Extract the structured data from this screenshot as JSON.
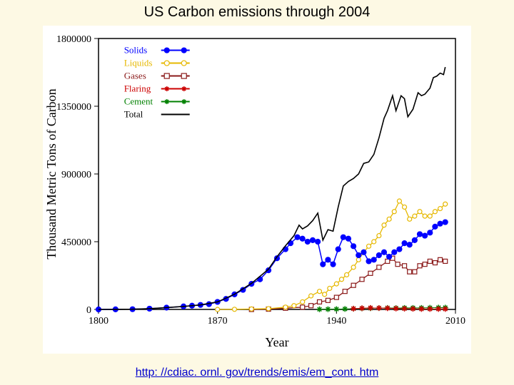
{
  "title": "US Carbon emissions through 2004",
  "footer_link": "http: //cdiac. ornl. gov/trends/emis/em_cont. htm",
  "chart": {
    "type": "line",
    "background_color": "#ffffff",
    "plot_border_color": "#000000",
    "xlabel": "Year",
    "ylabel": "Thousand Metric Tons of Carbon",
    "label_fontsize": 18,
    "tick_fontsize": 14,
    "xlim": [
      1800,
      2010
    ],
    "ylim": [
      0,
      1800000
    ],
    "xticks": [
      1800,
      1870,
      1940,
      2010
    ],
    "yticks": [
      0,
      450000,
      900000,
      1350000,
      1800000
    ],
    "legend": {
      "x": 1815,
      "y_top": 1750000,
      "box": false,
      "entries": [
        {
          "label": "Solids",
          "color": "#0000ff",
          "marker": "filled-circle",
          "line": "solid"
        },
        {
          "label": "Liquids",
          "color": "#e6b800",
          "marker": "open-circle",
          "line": "solid"
        },
        {
          "label": "Gases",
          "color": "#8b1a1a",
          "marker": "open-square",
          "line": "solid"
        },
        {
          "label": "Flaring",
          "color": "#cc0000",
          "marker": "asterisk",
          "line": "solid"
        },
        {
          "label": "Cement",
          "color": "#008000",
          "marker": "asterisk",
          "line": "solid"
        },
        {
          "label": "Total",
          "color": "#000000",
          "marker": "none",
          "line": "solid"
        }
      ]
    },
    "series": {
      "solids": {
        "color": "#0000ff",
        "marker": "filled-circle",
        "marker_size": 3.5,
        "line_width": 1.5,
        "data": [
          [
            1800,
            0
          ],
          [
            1810,
            500
          ],
          [
            1820,
            1500
          ],
          [
            1830,
            5000
          ],
          [
            1840,
            12000
          ],
          [
            1850,
            20000
          ],
          [
            1855,
            25000
          ],
          [
            1860,
            30000
          ],
          [
            1865,
            35000
          ],
          [
            1870,
            50000
          ],
          [
            1875,
            70000
          ],
          [
            1880,
            100000
          ],
          [
            1885,
            130000
          ],
          [
            1890,
            170000
          ],
          [
            1895,
            200000
          ],
          [
            1900,
            260000
          ],
          [
            1905,
            340000
          ],
          [
            1910,
            400000
          ],
          [
            1913,
            440000
          ],
          [
            1917,
            480000
          ],
          [
            1920,
            470000
          ],
          [
            1923,
            450000
          ],
          [
            1926,
            460000
          ],
          [
            1929,
            450000
          ],
          [
            1932,
            300000
          ],
          [
            1935,
            330000
          ],
          [
            1938,
            300000
          ],
          [
            1941,
            400000
          ],
          [
            1944,
            480000
          ],
          [
            1947,
            470000
          ],
          [
            1950,
            420000
          ],
          [
            1953,
            360000
          ],
          [
            1956,
            380000
          ],
          [
            1959,
            320000
          ],
          [
            1962,
            330000
          ],
          [
            1965,
            360000
          ],
          [
            1968,
            380000
          ],
          [
            1971,
            350000
          ],
          [
            1974,
            380000
          ],
          [
            1977,
            400000
          ],
          [
            1980,
            440000
          ],
          [
            1983,
            430000
          ],
          [
            1986,
            460000
          ],
          [
            1989,
            500000
          ],
          [
            1992,
            490000
          ],
          [
            1995,
            510000
          ],
          [
            1998,
            550000
          ],
          [
            2001,
            570000
          ],
          [
            2004,
            580000
          ]
        ]
      },
      "liquids": {
        "color": "#e6b800",
        "marker": "open-circle",
        "marker_size": 3,
        "line_width": 1.3,
        "data": [
          [
            1870,
            0
          ],
          [
            1880,
            1000
          ],
          [
            1890,
            3000
          ],
          [
            1900,
            5000
          ],
          [
            1910,
            15000
          ],
          [
            1915,
            25000
          ],
          [
            1920,
            50000
          ],
          [
            1925,
            90000
          ],
          [
            1930,
            120000
          ],
          [
            1933,
            100000
          ],
          [
            1936,
            140000
          ],
          [
            1940,
            170000
          ],
          [
            1943,
            200000
          ],
          [
            1946,
            230000
          ],
          [
            1950,
            280000
          ],
          [
            1953,
            330000
          ],
          [
            1956,
            380000
          ],
          [
            1959,
            420000
          ],
          [
            1962,
            450000
          ],
          [
            1965,
            490000
          ],
          [
            1968,
            560000
          ],
          [
            1971,
            600000
          ],
          [
            1974,
            650000
          ],
          [
            1977,
            720000
          ],
          [
            1980,
            680000
          ],
          [
            1983,
            600000
          ],
          [
            1986,
            620000
          ],
          [
            1989,
            650000
          ],
          [
            1992,
            620000
          ],
          [
            1995,
            620000
          ],
          [
            1998,
            650000
          ],
          [
            2001,
            670000
          ],
          [
            2004,
            700000
          ]
        ]
      },
      "gases": {
        "color": "#8b1a1a",
        "marker": "open-square",
        "marker_size": 3,
        "line_width": 1.3,
        "data": [
          [
            1890,
            0
          ],
          [
            1900,
            2000
          ],
          [
            1910,
            8000
          ],
          [
            1920,
            15000
          ],
          [
            1925,
            25000
          ],
          [
            1930,
            50000
          ],
          [
            1935,
            60000
          ],
          [
            1940,
            80000
          ],
          [
            1945,
            120000
          ],
          [
            1950,
            160000
          ],
          [
            1955,
            200000
          ],
          [
            1960,
            240000
          ],
          [
            1965,
            280000
          ],
          [
            1970,
            320000
          ],
          [
            1973,
            340000
          ],
          [
            1976,
            300000
          ],
          [
            1980,
            290000
          ],
          [
            1983,
            250000
          ],
          [
            1986,
            250000
          ],
          [
            1989,
            290000
          ],
          [
            1992,
            300000
          ],
          [
            1995,
            320000
          ],
          [
            1998,
            310000
          ],
          [
            2001,
            330000
          ],
          [
            2004,
            320000
          ]
        ]
      },
      "flaring": {
        "color": "#cc0000",
        "marker": "asterisk",
        "marker_size": 4,
        "line_width": 1,
        "data": [
          [
            1950,
            5000
          ],
          [
            1955,
            8000
          ],
          [
            1960,
            10000
          ],
          [
            1965,
            9000
          ],
          [
            1970,
            8000
          ],
          [
            1975,
            6000
          ],
          [
            1980,
            5000
          ],
          [
            1985,
            4000
          ],
          [
            1990,
            3000
          ],
          [
            1995,
            3000
          ],
          [
            2000,
            3000
          ],
          [
            2004,
            3000
          ]
        ]
      },
      "cement": {
        "color": "#008000",
        "marker": "asterisk",
        "marker_size": 4,
        "line_width": 1,
        "data": [
          [
            1930,
            1000
          ],
          [
            1935,
            1500
          ],
          [
            1940,
            2000
          ],
          [
            1945,
            3000
          ],
          [
            1950,
            5000
          ],
          [
            1955,
            7000
          ],
          [
            1960,
            8000
          ],
          [
            1965,
            9000
          ],
          [
            1970,
            10000
          ],
          [
            1975,
            9000
          ],
          [
            1980,
            10000
          ],
          [
            1985,
            10000
          ],
          [
            1990,
            10000
          ],
          [
            1995,
            11000
          ],
          [
            2000,
            12000
          ],
          [
            2004,
            12000
          ]
        ]
      },
      "total": {
        "color": "#000000",
        "marker": "none",
        "line_width": 1.6,
        "data": [
          [
            1800,
            0
          ],
          [
            1810,
            500
          ],
          [
            1820,
            1500
          ],
          [
            1830,
            5000
          ],
          [
            1840,
            12000
          ],
          [
            1850,
            20000
          ],
          [
            1860,
            30000
          ],
          [
            1870,
            50000
          ],
          [
            1880,
            101000
          ],
          [
            1890,
            173000
          ],
          [
            1900,
            267000
          ],
          [
            1905,
            350000
          ],
          [
            1910,
            423000
          ],
          [
            1915,
            490000
          ],
          [
            1918,
            560000
          ],
          [
            1920,
            535000
          ],
          [
            1923,
            555000
          ],
          [
            1926,
            590000
          ],
          [
            1929,
            640000
          ],
          [
            1932,
            460000
          ],
          [
            1935,
            530000
          ],
          [
            1938,
            520000
          ],
          [
            1941,
            680000
          ],
          [
            1944,
            820000
          ],
          [
            1947,
            850000
          ],
          [
            1950,
            870000
          ],
          [
            1953,
            900000
          ],
          [
            1956,
            970000
          ],
          [
            1959,
            980000
          ],
          [
            1962,
            1030000
          ],
          [
            1965,
            1140000
          ],
          [
            1968,
            1270000
          ],
          [
            1970,
            1320000
          ],
          [
            1973,
            1420000
          ],
          [
            1975,
            1320000
          ],
          [
            1978,
            1420000
          ],
          [
            1980,
            1400000
          ],
          [
            1982,
            1280000
          ],
          [
            1985,
            1330000
          ],
          [
            1988,
            1440000
          ],
          [
            1990,
            1420000
          ],
          [
            1992,
            1430000
          ],
          [
            1995,
            1470000
          ],
          [
            1997,
            1540000
          ],
          [
            1999,
            1550000
          ],
          [
            2001,
            1570000
          ],
          [
            2003,
            1560000
          ],
          [
            2004,
            1610000
          ]
        ]
      }
    }
  }
}
